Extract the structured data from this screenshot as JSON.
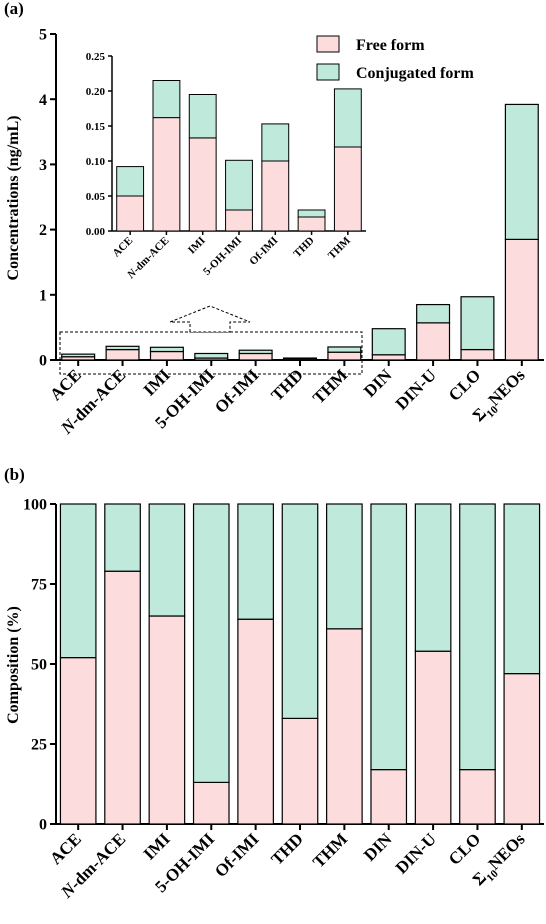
{
  "colors": {
    "free": "#fcdcdc",
    "conjugated": "#bfeadb",
    "stroke": "#000000"
  },
  "legend": {
    "free_label": "Free form",
    "conjugated_label": "Conjugated form",
    "placement": "top-right"
  },
  "chart_data": [
    {
      "panel": "(a)",
      "type": "bar",
      "stacked": true,
      "ylabel": "Concentrations (ng/mL)",
      "ylim": [
        0,
        5
      ],
      "yticks": [
        "0",
        "1",
        "2",
        "3",
        "4",
        "5"
      ],
      "categories": [
        "ACE",
        "N-dm-ACE",
        "IMI",
        "5-OH-IMI",
        "Of-IMI",
        "THD",
        "THM",
        "DIN",
        "DIN-U",
        "CLO",
        "Σ10NEOs"
      ],
      "series": [
        {
          "name": "Free form",
          "values": [
            0.05,
            0.16,
            0.13,
            0.03,
            0.1,
            0.02,
            0.12,
            0.08,
            0.57,
            0.16,
            1.85
          ]
        },
        {
          "name": "Conjugated form",
          "values": [
            0.04,
            0.05,
            0.065,
            0.07,
            0.05,
            0.01,
            0.08,
            0.4,
            0.28,
            0.81,
            2.07
          ]
        }
      ],
      "inset": {
        "type": "bar",
        "stacked": true,
        "ylim": [
          0,
          0.25
        ],
        "yticks": [
          "0.00",
          "0.05",
          "0.10",
          "0.15",
          "0.20",
          "0.25"
        ],
        "categories": [
          "ACE",
          "N-dm-ACE",
          "IMI",
          "5-OH-IMI",
          "Of-IMI",
          "THD",
          "THM"
        ],
        "series": [
          {
            "name": "Free form",
            "values": [
              0.05,
              0.162,
              0.133,
              0.03,
              0.1,
              0.02,
              0.12
            ]
          },
          {
            "name": "Conjugated form",
            "values": [
              0.042,
              0.053,
              0.062,
              0.071,
              0.053,
              0.01,
              0.083
            ]
          }
        ]
      }
    },
    {
      "panel": "(b)",
      "type": "bar",
      "stacked": true,
      "ylabel": "Composition (%)",
      "ylim": [
        0,
        100
      ],
      "yticks": [
        "0",
        "25",
        "50",
        "75",
        "100"
      ],
      "categories": [
        "ACE",
        "N-dm-ACE",
        "IMI",
        "5-OH-IMI",
        "Of-IMI",
        "THD",
        "THM",
        "DIN",
        "DIN-U",
        "CLO",
        "Σ10NEOs"
      ],
      "series": [
        {
          "name": "Free form",
          "values": [
            52,
            79,
            65,
            13,
            64,
            33,
            61,
            17,
            54,
            17,
            47
          ]
        },
        {
          "name": "Conjugated form",
          "values": [
            48,
            21,
            35,
            87,
            36,
            67,
            39,
            83,
            46,
            83,
            53
          ]
        }
      ]
    }
  ]
}
